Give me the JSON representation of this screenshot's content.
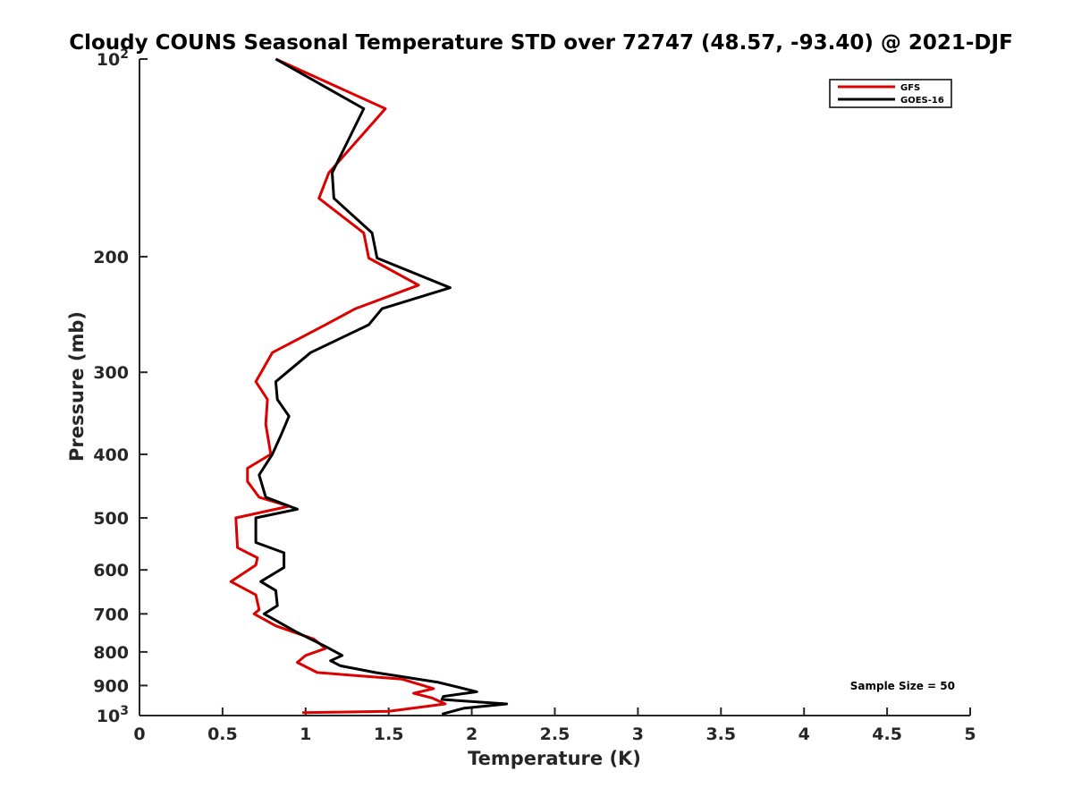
{
  "chart_data": {
    "type": "line",
    "title": "Cloudy COUNS Seasonal Temperature STD over 72747 (48.57, -93.40) @ 2021-DJF",
    "xlabel": "Temperature (K)",
    "ylabel": "Pressure (mb)",
    "xlim": [
      0,
      5
    ],
    "ylim": [
      100,
      1000
    ],
    "yscale": "log",
    "y_reversed": true,
    "x_ticks": [
      0,
      0.5,
      1,
      1.5,
      2,
      2.5,
      3,
      3.5,
      4,
      4.5,
      5
    ],
    "x_tick_labels": [
      "0",
      "0.5",
      "1",
      "1.5",
      "2",
      "2.5",
      "3",
      "3.5",
      "4",
      "4.5",
      "5"
    ],
    "y_ticks": [
      100,
      200,
      300,
      400,
      500,
      600,
      700,
      800,
      900,
      1000
    ],
    "y_tick_labels": [
      {
        "base": "10",
        "exp": "2"
      },
      {
        "base": "200",
        "exp": ""
      },
      {
        "base": "300",
        "exp": ""
      },
      {
        "base": "400",
        "exp": ""
      },
      {
        "base": "500",
        "exp": ""
      },
      {
        "base": "600",
        "exp": ""
      },
      {
        "base": "700",
        "exp": ""
      },
      {
        "base": "800",
        "exp": ""
      },
      {
        "base": "900",
        "exp": ""
      },
      {
        "base": "10",
        "exp": "3"
      }
    ],
    "grid": false,
    "legend_location": "top-right",
    "series": [
      {
        "name": "GFS",
        "color": "#dd0000",
        "points": [
          [
            0.82,
            100
          ],
          [
            1.48,
            119
          ],
          [
            1.14,
            149
          ],
          [
            1.08,
            163
          ],
          [
            1.35,
            184
          ],
          [
            1.38,
            201
          ],
          [
            1.68,
            221
          ],
          [
            1.3,
            240
          ],
          [
            1.12,
            254
          ],
          [
            0.8,
            280
          ],
          [
            0.7,
            310
          ],
          [
            0.77,
            330
          ],
          [
            0.76,
            360
          ],
          [
            0.79,
            400
          ],
          [
            0.65,
            420
          ],
          [
            0.65,
            440
          ],
          [
            0.72,
            465
          ],
          [
            0.9,
            480
          ],
          [
            0.58,
            500
          ],
          [
            0.59,
            555
          ],
          [
            0.71,
            575
          ],
          [
            0.7,
            590
          ],
          [
            0.55,
            625
          ],
          [
            0.7,
            655
          ],
          [
            0.72,
            690
          ],
          [
            0.69,
            700
          ],
          [
            0.82,
            730
          ],
          [
            1.05,
            765
          ],
          [
            1.12,
            790
          ],
          [
            1.0,
            810
          ],
          [
            0.95,
            830
          ],
          [
            1.07,
            860
          ],
          [
            1.58,
            880
          ],
          [
            1.77,
            910
          ],
          [
            1.65,
            925
          ],
          [
            1.76,
            940
          ],
          [
            1.84,
            960
          ],
          [
            1.5,
            985
          ],
          [
            0.98,
            990
          ]
        ]
      },
      {
        "name": "GOES-16",
        "color": "#000000",
        "points": [
          [
            0.82,
            100
          ],
          [
            1.35,
            119
          ],
          [
            1.16,
            149
          ],
          [
            1.17,
            163
          ],
          [
            1.4,
            184
          ],
          [
            1.43,
            201
          ],
          [
            1.87,
            223
          ],
          [
            1.46,
            240
          ],
          [
            1.38,
            254
          ],
          [
            1.03,
            280
          ],
          [
            0.82,
            310
          ],
          [
            0.83,
            330
          ],
          [
            0.9,
            350
          ],
          [
            0.85,
            375
          ],
          [
            0.8,
            400
          ],
          [
            0.72,
            430
          ],
          [
            0.76,
            465
          ],
          [
            0.95,
            485
          ],
          [
            0.7,
            500
          ],
          [
            0.7,
            545
          ],
          [
            0.87,
            565
          ],
          [
            0.87,
            595
          ],
          [
            0.73,
            625
          ],
          [
            0.82,
            645
          ],
          [
            0.83,
            680
          ],
          [
            0.75,
            700
          ],
          [
            0.94,
            745
          ],
          [
            1.12,
            785
          ],
          [
            1.22,
            810
          ],
          [
            1.15,
            825
          ],
          [
            1.21,
            840
          ],
          [
            1.42,
            860
          ],
          [
            1.8,
            890
          ],
          [
            2.03,
            920
          ],
          [
            1.83,
            935
          ],
          [
            1.82,
            945
          ],
          [
            2.21,
            960
          ],
          [
            1.95,
            975
          ],
          [
            1.82,
            995
          ]
        ]
      }
    ],
    "annotation": "Sample Size = 50"
  }
}
